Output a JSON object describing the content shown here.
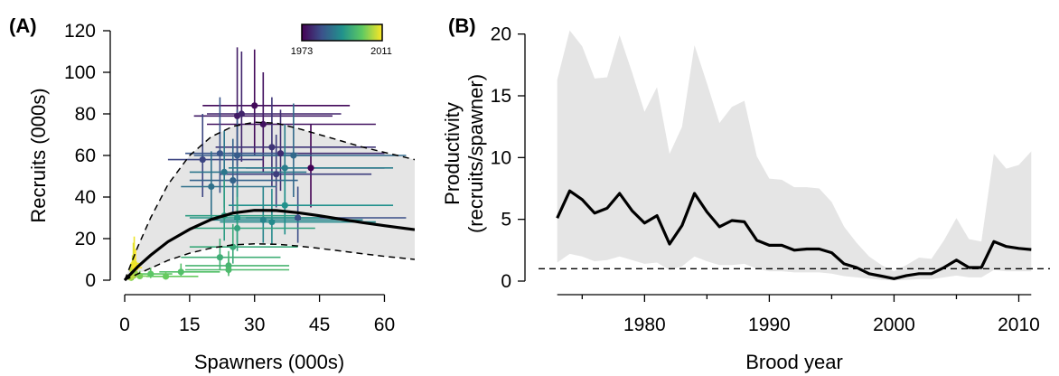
{
  "chart_data": [
    {
      "type": "scatter",
      "panel_label": "(A)",
      "xlabel": "Spawners (000s)",
      "ylabel": "Recruits (000s)",
      "xlim": [
        0,
        67
      ],
      "ylim": [
        0,
        120
      ],
      "xticks": [
        0,
        15,
        30,
        45,
        60
      ],
      "yticks": [
        0,
        20,
        40,
        60,
        80,
        100,
        120
      ],
      "colorbar": {
        "min_label": "1973",
        "max_label": "2011",
        "min": 1973,
        "max": 2011,
        "colormap": "viridis"
      },
      "fit_median": [
        [
          0,
          0
        ],
        [
          3,
          6.5
        ],
        [
          6,
          12
        ],
        [
          10,
          18.5
        ],
        [
          15,
          24.5
        ],
        [
          20,
          29.2
        ],
        [
          25,
          32.3
        ],
        [
          30,
          33.6
        ],
        [
          35,
          33.5
        ],
        [
          40,
          32.5
        ],
        [
          45,
          31
        ],
        [
          50,
          29.3
        ],
        [
          55,
          27.7
        ],
        [
          60,
          26.2
        ],
        [
          67,
          24.3
        ]
      ],
      "fit_upper": [
        [
          0,
          0
        ],
        [
          3,
          16
        ],
        [
          6,
          30
        ],
        [
          10,
          46
        ],
        [
          15,
          60
        ],
        [
          20,
          69
        ],
        [
          25,
          74
        ],
        [
          30,
          76
        ],
        [
          35,
          75.5
        ],
        [
          40,
          73
        ],
        [
          45,
          70
        ],
        [
          50,
          67
        ],
        [
          55,
          64
        ],
        [
          60,
          61.5
        ],
        [
          67,
          58
        ]
      ],
      "fit_lower": [
        [
          0,
          0
        ],
        [
          3,
          3
        ],
        [
          6,
          5.8
        ],
        [
          10,
          9.5
        ],
        [
          15,
          13
        ],
        [
          20,
          15.5
        ],
        [
          25,
          17
        ],
        [
          30,
          17.5
        ],
        [
          35,
          17.3
        ],
        [
          40,
          16.5
        ],
        [
          45,
          15.3
        ],
        [
          50,
          14
        ],
        [
          55,
          12.7
        ],
        [
          60,
          11.5
        ],
        [
          67,
          10
        ]
      ],
      "points": [
        {
          "year": 1973,
          "x": 43,
          "y": 54,
          "xlo": 28,
          "xhi": 60,
          "ylo": 35,
          "yhi": 75
        },
        {
          "year": 1974,
          "x": 30,
          "y": 84,
          "xlo": 18,
          "xhi": 52,
          "ylo": 60,
          "yhi": 111
        },
        {
          "year": 1975,
          "x": 32,
          "y": 75,
          "xlo": 19,
          "xhi": 58,
          "ylo": 52,
          "yhi": 100
        },
        {
          "year": 1976,
          "x": 26,
          "y": 79,
          "xlo": 16,
          "xhi": 48,
          "ylo": 55,
          "yhi": 112
        },
        {
          "year": 1977,
          "x": 27,
          "y": 80,
          "xlo": 19,
          "xhi": 50,
          "ylo": 57,
          "yhi": 110
        },
        {
          "year": 1978,
          "x": 36,
          "y": 61,
          "xlo": 24,
          "xhi": 60,
          "ylo": 43,
          "yhi": 82
        },
        {
          "year": 1979,
          "x": 34,
          "y": 64,
          "xlo": 21,
          "xhi": 58,
          "ylo": 45,
          "yhi": 88
        },
        {
          "year": 1980,
          "x": 35,
          "y": 51,
          "xlo": 22,
          "xhi": 57,
          "ylo": 35,
          "yhi": 70
        },
        {
          "year": 1981,
          "x": 18,
          "y": 58,
          "xlo": 10,
          "xhi": 32,
          "ylo": 40,
          "yhi": 80
        },
        {
          "year": 1982,
          "x": 40,
          "y": 30,
          "xlo": 28,
          "xhi": 65,
          "ylo": 18,
          "yhi": 45
        },
        {
          "year": 1983,
          "x": 22,
          "y": 61,
          "xlo": 14,
          "xhi": 40,
          "ylo": 42,
          "yhi": 88
        },
        {
          "year": 1984,
          "x": 26,
          "y": 60,
          "xlo": 16,
          "xhi": 43,
          "ylo": 40,
          "yhi": 82
        },
        {
          "year": 1985,
          "x": 25,
          "y": 48,
          "xlo": 15,
          "xhi": 40,
          "ylo": 32,
          "yhi": 68
        },
        {
          "year": 1986,
          "x": 39,
          "y": 60,
          "xlo": 25,
          "xhi": 65,
          "ylo": 40,
          "yhi": 85
        },
        {
          "year": 1987,
          "x": 20,
          "y": 45,
          "xlo": 13,
          "xhi": 35,
          "ylo": 30,
          "yhi": 62
        },
        {
          "year": 1988,
          "x": 23,
          "y": 52,
          "xlo": 15,
          "xhi": 42,
          "ylo": 35,
          "yhi": 72
        },
        {
          "year": 1989,
          "x": 37,
          "y": 54,
          "xlo": 24,
          "xhi": 62,
          "ylo": 36,
          "yhi": 75
        },
        {
          "year": 1990,
          "x": 32,
          "y": 29,
          "xlo": 20,
          "xhi": 55,
          "ylo": 18,
          "yhi": 45
        },
        {
          "year": 1991,
          "x": 34,
          "y": 28,
          "xlo": 22,
          "xhi": 58,
          "ylo": 17,
          "yhi": 44
        },
        {
          "year": 1992,
          "x": 37,
          "y": 36,
          "xlo": 24,
          "xhi": 62,
          "ylo": 22,
          "yhi": 55
        },
        {
          "year": 1993,
          "x": 26,
          "y": 30,
          "xlo": 15,
          "xhi": 45,
          "ylo": 18,
          "yhi": 46
        },
        {
          "year": 1994,
          "x": 23,
          "y": 31,
          "xlo": 14,
          "xhi": 40,
          "ylo": 19,
          "yhi": 48
        },
        {
          "year": 1995,
          "x": 26,
          "y": 25,
          "xlo": 15,
          "xhi": 44,
          "ylo": 14,
          "yhi": 40
        },
        {
          "year": 1996,
          "x": 25,
          "y": 16,
          "xlo": 15,
          "xhi": 40,
          "ylo": 8,
          "yhi": 27
        },
        {
          "year": 1997,
          "x": 22,
          "y": 11,
          "xlo": 13,
          "xhi": 36,
          "ylo": 5,
          "yhi": 20
        },
        {
          "year": 1998,
          "x": 24,
          "y": 7,
          "xlo": 14,
          "xhi": 38,
          "ylo": 3,
          "yhi": 14
        },
        {
          "year": 1999,
          "x": 24,
          "y": 5,
          "xlo": 14,
          "xhi": 38,
          "ylo": 2,
          "yhi": 10
        },
        {
          "year": 2000,
          "x": 13,
          "y": 4,
          "xlo": 8,
          "xhi": 22,
          "ylo": 2,
          "yhi": 8
        },
        {
          "year": 2001,
          "x": 6,
          "y": 3,
          "xlo": 3,
          "xhi": 11,
          "ylo": 1,
          "yhi": 6
        },
        {
          "year": 2002,
          "x": 9.5,
          "y": 1.8,
          "xlo": 5,
          "xhi": 17,
          "ylo": 0.8,
          "yhi": 4
        },
        {
          "year": 2003,
          "x": 3.5,
          "y": 2,
          "xlo": 2,
          "xhi": 6,
          "ylo": 0.8,
          "yhi": 4.5
        },
        {
          "year": 2004,
          "x": 1.5,
          "y": 1.2,
          "xlo": 0.8,
          "xhi": 2.5,
          "ylo": 0.5,
          "yhi": 2.5
        },
        {
          "year": 2005,
          "x": 2.5,
          "y": 3,
          "xlo": 1.5,
          "xhi": 4,
          "ylo": 1.2,
          "yhi": 6
        },
        {
          "year": 2006,
          "x": 1.2,
          "y": 1.5,
          "xlo": 0.7,
          "xhi": 2,
          "ylo": 0.6,
          "yhi": 3
        },
        {
          "year": 2007,
          "x": 1.6,
          "y": 2,
          "xlo": 1,
          "xhi": 2.6,
          "ylo": 0.8,
          "yhi": 4
        },
        {
          "year": 2008,
          "x": 1.8,
          "y": 5,
          "xlo": 1,
          "xhi": 3,
          "ylo": 1.5,
          "yhi": 12
        },
        {
          "year": 2009,
          "x": 2,
          "y": 7,
          "xlo": 1.2,
          "xhi": 3.5,
          "ylo": 2,
          "yhi": 18
        },
        {
          "year": 2010,
          "x": 2.2,
          "y": 8,
          "xlo": 1.3,
          "xhi": 3.5,
          "ylo": 2,
          "yhi": 21
        },
        {
          "year": 2011,
          "x": 2.5,
          "y": 6,
          "xlo": 1.5,
          "xhi": 4,
          "ylo": 1.5,
          "yhi": 15
        }
      ],
      "colors": {
        "band": "#e5e5e5",
        "line": "#000000"
      }
    },
    {
      "type": "line",
      "panel_label": "(B)",
      "xlabel": "Brood year",
      "ylabel_line1": "Productivity",
      "ylabel_line2": "(recruits/spawner)",
      "xlim": [
        1971.5,
        2012.5
      ],
      "ylim": [
        0,
        21
      ],
      "xticks": [
        1980,
        1990,
        2000,
        2010
      ],
      "yticks": [
        0,
        5,
        10,
        15,
        20
      ],
      "reference_line": 1,
      "x": [
        1973,
        1974,
        1975,
        1976,
        1977,
        1978,
        1979,
        1980,
        1981,
        1982,
        1983,
        1984,
        1985,
        1986,
        1987,
        1988,
        1989,
        1990,
        1991,
        1992,
        1993,
        1994,
        1995,
        1996,
        1997,
        1998,
        1999,
        2000,
        2001,
        2002,
        2003,
        2004,
        2005,
        2006,
        2007,
        2008,
        2009,
        2010,
        2011
      ],
      "median": [
        5.1,
        7.3,
        6.6,
        5.5,
        5.9,
        7.1,
        5.7,
        4.7,
        5.3,
        3.0,
        4.5,
        7.1,
        5.6,
        4.4,
        4.9,
        4.8,
        3.3,
        2.9,
        2.9,
        2.5,
        2.6,
        2.6,
        2.3,
        1.4,
        1.1,
        0.6,
        0.4,
        0.2,
        0.45,
        0.6,
        0.6,
        1.1,
        1.7,
        1.1,
        1.1,
        3.2,
        2.8,
        2.65,
        2.55
      ],
      "upper": [
        16.3,
        20.3,
        19.0,
        16.4,
        16.5,
        19.9,
        16.9,
        13.7,
        15.7,
        10.3,
        12.5,
        19.1,
        16.0,
        12.8,
        14.1,
        14.6,
        10.1,
        8.3,
        8.2,
        7.6,
        7.6,
        7.5,
        6.4,
        4.4,
        3.1,
        2.0,
        1.3,
        0.8,
        1.3,
        1.9,
        1.8,
        3.3,
        5.1,
        3.4,
        3.2,
        10.3,
        9.1,
        9.4,
        10.5
      ],
      "lower": [
        1.5,
        2.2,
        2.0,
        1.6,
        1.7,
        2.0,
        1.7,
        1.4,
        1.5,
        0.9,
        1.2,
        2.0,
        1.6,
        1.3,
        1.3,
        1.4,
        1.0,
        0.8,
        0.8,
        0.7,
        0.7,
        0.7,
        0.6,
        0.4,
        0.3,
        0.2,
        0.1,
        0.05,
        0.1,
        0.15,
        0.15,
        0.3,
        0.45,
        0.3,
        0.3,
        0.9,
        0.8,
        0.8,
        0.8
      ],
      "colors": {
        "band": "#e5e5e5",
        "line": "#000000"
      }
    }
  ]
}
